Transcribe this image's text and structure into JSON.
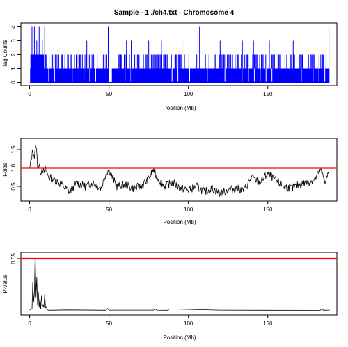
{
  "title": "Sample - 1 ./ch4.txt - Chromosome 4",
  "colors": {
    "bars": "#0000ff",
    "line": "#000000",
    "threshold": "#ff0000"
  },
  "chart_data": [
    {
      "type": "bar",
      "ylabel": "Tag Counts",
      "xlabel": "Position (Mb)",
      "xlim": [
        0,
        190
      ],
      "ylim": [
        0,
        4
      ],
      "x_ticks": [
        "0",
        "50",
        "100",
        "150"
      ],
      "y_ticks": [
        "0",
        "1",
        "2",
        "3",
        "4"
      ],
      "grid": false,
      "notes": "dense tag counts, mostly 1-2, occasional spikes to 3-4",
      "spikes_mb": [
        1.5,
        3,
        4.5,
        6,
        8,
        9.5,
        36,
        49.5,
        61,
        64,
        75,
        83,
        96,
        107,
        120,
        134,
        141,
        151,
        166,
        174,
        188.5
      ],
      "spike_values": [
        4,
        4,
        3,
        4,
        3,
        4,
        3,
        4,
        3,
        3,
        3,
        3,
        3,
        4,
        3,
        3,
        3,
        3,
        3,
        3,
        4
      ],
      "gaps_mb": [
        [
          49.6,
          51.8
        ]
      ]
    },
    {
      "type": "line",
      "ylabel": "Folds",
      "xlabel": "Position (Mb)",
      "xlim": [
        0,
        190
      ],
      "ylim": [
        0.2,
        1.7
      ],
      "x_ticks": [
        "0",
        "50",
        "100",
        "150"
      ],
      "y_ticks": [
        "0.5",
        "1.0",
        "1.5"
      ],
      "threshold": 1.0,
      "grid": false,
      "x": [
        0,
        2,
        3,
        4,
        5,
        6,
        7,
        8,
        9,
        10,
        12,
        15,
        20,
        25,
        30,
        35,
        40,
        45,
        48,
        50,
        52,
        55,
        60,
        65,
        70,
        75,
        78,
        80,
        85,
        90,
        95,
        100,
        105,
        110,
        115,
        120,
        125,
        130,
        135,
        140,
        145,
        150,
        155,
        160,
        165,
        170,
        175,
        180,
        183,
        186,
        189
      ],
      "y": [
        0.95,
        1.5,
        1.3,
        1.65,
        1.1,
        1.05,
        0.9,
        1.0,
        0.85,
        0.95,
        0.75,
        0.7,
        0.55,
        0.35,
        0.6,
        0.5,
        0.6,
        0.45,
        0.85,
        0.95,
        0.75,
        0.5,
        0.55,
        0.45,
        0.5,
        0.7,
        0.95,
        0.75,
        0.5,
        0.6,
        0.45,
        0.4,
        0.5,
        0.35,
        0.45,
        0.3,
        0.4,
        0.45,
        0.4,
        0.75,
        0.6,
        0.85,
        0.65,
        0.5,
        0.45,
        0.55,
        0.6,
        0.7,
        0.95,
        0.65,
        0.9
      ]
    },
    {
      "type": "line",
      "ylabel": "P-value",
      "xlabel": "Position (Mb)",
      "xlim": [
        0,
        190
      ],
      "ylim": [
        0,
        0.06
      ],
      "x_ticks": [
        "0",
        "50",
        "100",
        "150"
      ],
      "y_ticks": [
        "0.05"
      ],
      "threshold": 0.05,
      "grid": false,
      "x": [
        0,
        1.5,
        2,
        2.5,
        3,
        3.5,
        4,
        4.5,
        5,
        5.5,
        6,
        6.5,
        7,
        7.5,
        8,
        8.5,
        9,
        9.5,
        10,
        10.5,
        11,
        12,
        24,
        48,
        49,
        50,
        78,
        79,
        80,
        87,
        88,
        120,
        150,
        183,
        184,
        185,
        189
      ],
      "y": [
        0.0008,
        0.002,
        0.028,
        0.008,
        0.017,
        0.055,
        0.013,
        0.032,
        0.005,
        0.018,
        0.003,
        0.013,
        0.002,
        0.015,
        0.004,
        0.006,
        0.003,
        0.016,
        0.003,
        0.004,
        0.001,
        0.0005,
        0.0008,
        0.0005,
        0.0022,
        0.0006,
        0.0006,
        0.002,
        0.0006,
        0.0005,
        0.0017,
        0.0006,
        0.0005,
        0.0004,
        0.0022,
        0.0005,
        0.0006
      ]
    }
  ]
}
